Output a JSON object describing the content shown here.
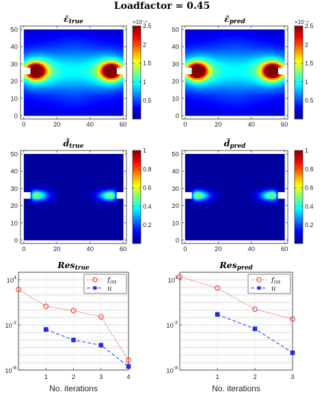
{
  "figure_title": "Loadfactor = 0.45",
  "chart_data": [
    {
      "id": "eps-true",
      "type": "heatmap",
      "title": "ε̄_true",
      "title_main": "ε̄",
      "title_sub": "true",
      "xlim": [
        -2,
        62
      ],
      "ylim": [
        -2,
        52
      ],
      "xticks": [
        0,
        20,
        40,
        60
      ],
      "yticks": [
        0,
        10,
        20,
        30,
        40,
        50
      ],
      "colorbar": {
        "min": 0,
        "max": 2.5,
        "ticks": [
          "0.5",
          "1",
          "1.5",
          "2",
          "2.5"
        ],
        "multiplier": "×10⁻⁴"
      },
      "field": "strain",
      "hotspots": [
        [
          7,
          26,
          2.5
        ],
        [
          53,
          26,
          2.5
        ]
      ]
    },
    {
      "id": "eps-pred",
      "type": "heatmap",
      "title": "ε̄_pred",
      "title_main": "ε̄",
      "title_sub": "pred",
      "xlim": [
        -2,
        62
      ],
      "ylim": [
        -2,
        52
      ],
      "xticks": [
        0,
        20,
        40,
        60
      ],
      "yticks": [
        0,
        10,
        20,
        30,
        40,
        50
      ],
      "colorbar": {
        "min": 0,
        "max": 2.5,
        "ticks": [
          "0.5",
          "1",
          "1.5",
          "2",
          "2.5"
        ],
        "multiplier": "×10⁻⁴"
      },
      "field": "strain",
      "hotspots": [
        [
          7,
          26,
          2.5
        ],
        [
          53,
          26,
          2.5
        ]
      ]
    },
    {
      "id": "d-true",
      "type": "heatmap",
      "title": "d̄_true",
      "title_main": "d̄",
      "title_sub": "true",
      "xlim": [
        -2,
        62
      ],
      "ylim": [
        -2,
        52
      ],
      "xticks": [
        0,
        20,
        40,
        60
      ],
      "yticks": [
        0,
        10,
        20,
        30,
        40,
        50
      ],
      "colorbar": {
        "min": 0,
        "max": 1,
        "ticks": [
          "0.2",
          "0.4",
          "0.6",
          "0.8",
          "1"
        ]
      },
      "field": "damage",
      "hotspots": [
        [
          7,
          26,
          0.5
        ],
        [
          53,
          26,
          0.5
        ]
      ]
    },
    {
      "id": "d-pred",
      "type": "heatmap",
      "title": "d̄_pred",
      "title_main": "d̄",
      "title_sub": "pred",
      "xlim": [
        -2,
        62
      ],
      "ylim": [
        -2,
        52
      ],
      "xticks": [
        0,
        20,
        40,
        60
      ],
      "yticks": [
        0,
        10,
        20,
        30,
        40,
        50
      ],
      "colorbar": {
        "min": 0,
        "max": 1,
        "ticks": [
          "0.2",
          "0.4",
          "0.6",
          "0.8",
          "1"
        ]
      },
      "field": "damage",
      "hotspots": [
        [
          7,
          26,
          0.5
        ],
        [
          53,
          26,
          0.5
        ]
      ]
    },
    {
      "id": "res-true",
      "type": "line",
      "title": "Res_true",
      "title_main": "Res",
      "title_sub": "true",
      "xlabel": "No. iterations",
      "ylabel": "",
      "yscale": "log",
      "xlim": [
        0,
        4
      ],
      "ylim": [
        1e-08,
        100000.0
      ],
      "xticks": [
        1,
        2,
        3,
        4
      ],
      "yticks": [
        {
          "v": 1e-08,
          "label": "10",
          "exp": "-8"
        },
        {
          "v": 0.01,
          "label": "10",
          "exp": "-2"
        },
        {
          "v": 10000.0,
          "label": "10",
          "exp": "4"
        }
      ],
      "legend": "top-right",
      "series": [
        {
          "name": "f_int",
          "name_main": "f",
          "name_sub": "int",
          "color": "#e8302a",
          "marker": "circle",
          "x": [
            0,
            1,
            2,
            3,
            4
          ],
          "y": [
            500,
            3,
            0.8,
            0.12,
            2e-07
          ]
        },
        {
          "name": "u",
          "name_main": "u",
          "name_sub": "",
          "color": "#1e2ee0",
          "marker": "square",
          "x": [
            1,
            2,
            3,
            4
          ],
          "y": [
            0.0025,
            0.0001,
            2e-05,
            3e-08
          ]
        }
      ]
    },
    {
      "id": "res-pred",
      "type": "line",
      "title": "Res_pred",
      "title_main": "Res",
      "title_sub": "pred",
      "xlabel": "No. iterations",
      "ylabel": "",
      "yscale": "log",
      "xlim": [
        0,
        3
      ],
      "ylim": [
        1e-08,
        100000.0
      ],
      "xticks": [
        1,
        2,
        3
      ],
      "yticks": [
        {
          "v": 1e-08,
          "label": "10",
          "exp": "-8"
        },
        {
          "v": 0.01,
          "label": "10",
          "exp": "-2"
        },
        {
          "v": 10000.0,
          "label": "10",
          "exp": "4"
        }
      ],
      "legend": "top-right",
      "series": [
        {
          "name": "f_int",
          "name_main": "f",
          "name_sub": "int",
          "color": "#e8302a",
          "marker": "circle",
          "x": [
            0,
            1,
            2,
            3
          ],
          "y": [
            25000,
            800,
            1.2,
            0.06
          ]
        },
        {
          "name": "u",
          "name_main": "u",
          "name_sub": "",
          "color": "#1e2ee0",
          "marker": "square",
          "x": [
            1,
            2,
            3
          ],
          "y": [
            0.25,
            0.003,
            2e-06
          ]
        }
      ]
    }
  ]
}
